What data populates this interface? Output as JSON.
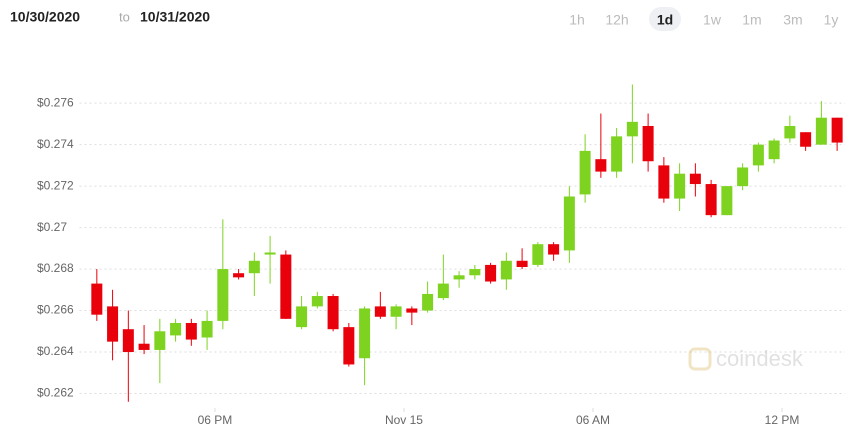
{
  "chart_data": {
    "type": "candlestick",
    "date_from": "10/30/2020",
    "date_separator": "to",
    "date_to": "10/31/2020",
    "range_options": [
      "1h",
      "12h",
      "1d",
      "1w",
      "1m",
      "3m",
      "1y"
    ],
    "selected_range": "1d",
    "watermark": "coindesk",
    "up_color": "#7ed321",
    "down_color": "#e8000b",
    "grid": true,
    "x": [
      14.25,
      14.75,
      15.25,
      15.75,
      16.25,
      16.75,
      17.25,
      17.75,
      18.25,
      18.75,
      19.25,
      19.75,
      20.25,
      20.75,
      21.25,
      21.75,
      22.25,
      22.75,
      23.25,
      23.75,
      24.25,
      24.75,
      25.25,
      25.75,
      26.25,
      26.75,
      27.25,
      27.75,
      28.25,
      28.75,
      29.25,
      29.75,
      30.25,
      30.75,
      31.25,
      31.75,
      32.25,
      32.75,
      33.25,
      33.75,
      34.25,
      34.75,
      35.25,
      35.75,
      36.25,
      36.75,
      37.25,
      37.75
    ],
    "open": [
      0.2673,
      0.2662,
      0.2651,
      0.2644,
      0.2641,
      0.2648,
      0.2654,
      0.2647,
      0.2655,
      0.2678,
      0.2678,
      0.2687,
      0.2687,
      0.2652,
      0.2662,
      0.2667,
      0.2652,
      0.2637,
      0.2662,
      0.2657,
      0.2661,
      0.266,
      0.2666,
      0.2675,
      0.2677,
      0.2682,
      0.2675,
      0.2684,
      0.2682,
      0.2692,
      0.2689,
      0.2716,
      0.2733,
      0.2727,
      0.2744,
      0.2749,
      0.273,
      0.2714,
      0.2726,
      0.2721,
      0.2706,
      0.272,
      0.273,
      0.2733,
      0.2743,
      0.2746,
      0.274,
      0.2753
    ],
    "high": [
      0.268,
      0.267,
      0.266,
      0.2653,
      0.2656,
      0.2656,
      0.2656,
      0.266,
      0.2704,
      0.268,
      0.2688,
      0.2696,
      0.2689,
      0.2667,
      0.2669,
      0.2668,
      0.2654,
      0.2662,
      0.2669,
      0.2663,
      0.2662,
      0.2674,
      0.2687,
      0.2679,
      0.2682,
      0.2683,
      0.2688,
      0.269,
      0.2693,
      0.2693,
      0.272,
      0.2745,
      0.2755,
      0.2748,
      0.2769,
      0.2755,
      0.2734,
      0.2731,
      0.2731,
      0.2723,
      0.272,
      0.2731,
      0.2741,
      0.2743,
      0.2754,
      0.2746,
      0.2761,
      0.2753
    ],
    "low": [
      0.2655,
      0.2636,
      0.2616,
      0.2639,
      0.2625,
      0.2645,
      0.2643,
      0.2641,
      0.2651,
      0.2675,
      0.2667,
      0.2673,
      0.2656,
      0.2651,
      0.2661,
      0.265,
      0.2633,
      0.2624,
      0.2656,
      0.2651,
      0.2653,
      0.2659,
      0.2665,
      0.2671,
      0.2675,
      0.2673,
      0.267,
      0.268,
      0.2681,
      0.2684,
      0.2683,
      0.2712,
      0.2724,
      0.2724,
      0.2731,
      0.2727,
      0.2712,
      0.2708,
      0.2715,
      0.2705,
      0.2706,
      0.2718,
      0.2727,
      0.2731,
      0.2741,
      0.2737,
      0.274,
      0.2737
    ],
    "close": [
      0.2658,
      0.2645,
      0.264,
      0.2641,
      0.265,
      0.2654,
      0.2646,
      0.2655,
      0.268,
      0.2676,
      0.2684,
      0.2688,
      0.2656,
      0.2662,
      0.2667,
      0.2651,
      0.2634,
      0.2661,
      0.2657,
      0.2662,
      0.2659,
      0.2668,
      0.2673,
      0.2677,
      0.268,
      0.2674,
      0.2684,
      0.2681,
      0.2692,
      0.2687,
      0.2715,
      0.2737,
      0.2727,
      0.2744,
      0.2751,
      0.2732,
      0.2714,
      0.2726,
      0.2721,
      0.2706,
      0.272,
      0.2729,
      0.274,
      0.2742,
      0.2749,
      0.2739,
      0.2753,
      0.2741
    ],
    "xlim": [
      13.7,
      38.0
    ],
    "xticks": [
      {
        "value": 18,
        "label": "06 PM"
      },
      {
        "value": 24,
        "label": "Nov 15"
      },
      {
        "value": 30,
        "label": "06 AM"
      },
      {
        "value": 36,
        "label": "12 PM"
      }
    ],
    "ylim": [
      0.2613,
      0.2776
    ],
    "yticks": [
      {
        "value": 0.262,
        "label": "$0.262"
      },
      {
        "value": 0.264,
        "label": "$0.264"
      },
      {
        "value": 0.266,
        "label": "$0.266"
      },
      {
        "value": 0.268,
        "label": "$0.268"
      },
      {
        "value": 0.27,
        "label": "$0.27"
      },
      {
        "value": 0.272,
        "label": "$0.272"
      },
      {
        "value": 0.274,
        "label": "$0.274"
      },
      {
        "value": 0.276,
        "label": "$0.276"
      }
    ]
  }
}
